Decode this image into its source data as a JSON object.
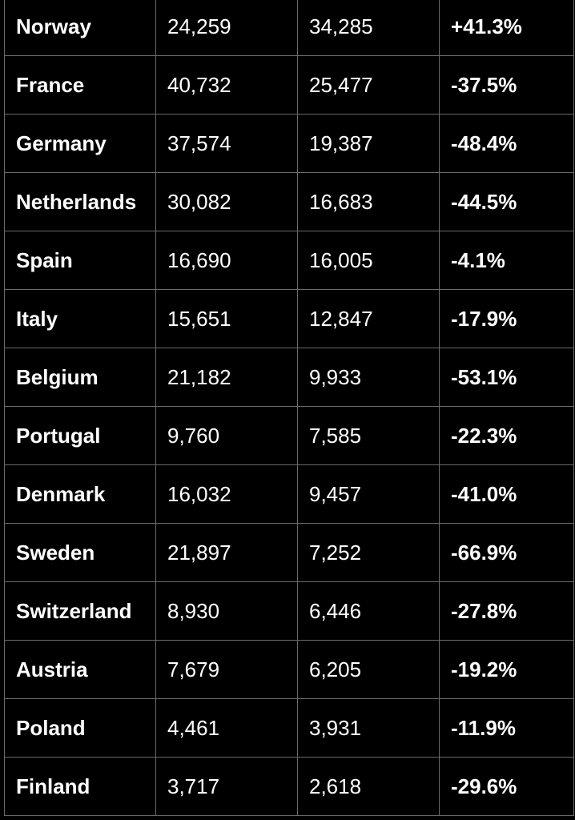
{
  "rows": [
    {
      "country": "Norway",
      "col1": "24,259",
      "col2": "34,285",
      "change": "+41.3%"
    },
    {
      "country": "France",
      "col1": "40,732",
      "col2": "25,477",
      "change": "-37.5%"
    },
    {
      "country": "Germany",
      "col1": "37,574",
      "col2": "19,387",
      "change": "-48.4%"
    },
    {
      "country": "Netherlands",
      "col1": "30,082",
      "col2": "16,683",
      "change": "-44.5%"
    },
    {
      "country": "Spain",
      "col1": "16,690",
      "col2": "16,005",
      "change": "-4.1%"
    },
    {
      "country": "Italy",
      "col1": "15,651",
      "col2": "12,847",
      "change": "-17.9%"
    },
    {
      "country": "Belgium",
      "col1": "21,182",
      "col2": "9,933",
      "change": "-53.1%"
    },
    {
      "country": "Portugal",
      "col1": "9,760",
      "col2": "7,585",
      "change": "-22.3%"
    },
    {
      "country": "Denmark",
      "col1": "16,032",
      "col2": "9,457",
      "change": "-41.0%"
    },
    {
      "country": "Sweden",
      "col1": "21,897",
      "col2": "7,252",
      "change": "-66.9%"
    },
    {
      "country": "Switzerland",
      "col1": "8,930",
      "col2": "6,446",
      "change": "-27.8%"
    },
    {
      "country": "Austria",
      "col1": "7,679",
      "col2": "6,205",
      "change": "-19.2%"
    },
    {
      "country": "Poland",
      "col1": "4,461",
      "col2": "3,931",
      "change": "-11.9%"
    },
    {
      "country": "Finland",
      "col1": "3,717",
      "col2": "2,618",
      "change": "-29.6%"
    }
  ],
  "colors": {
    "background": "#000000",
    "text": "#ffffff",
    "border": "#6b6b6b"
  }
}
